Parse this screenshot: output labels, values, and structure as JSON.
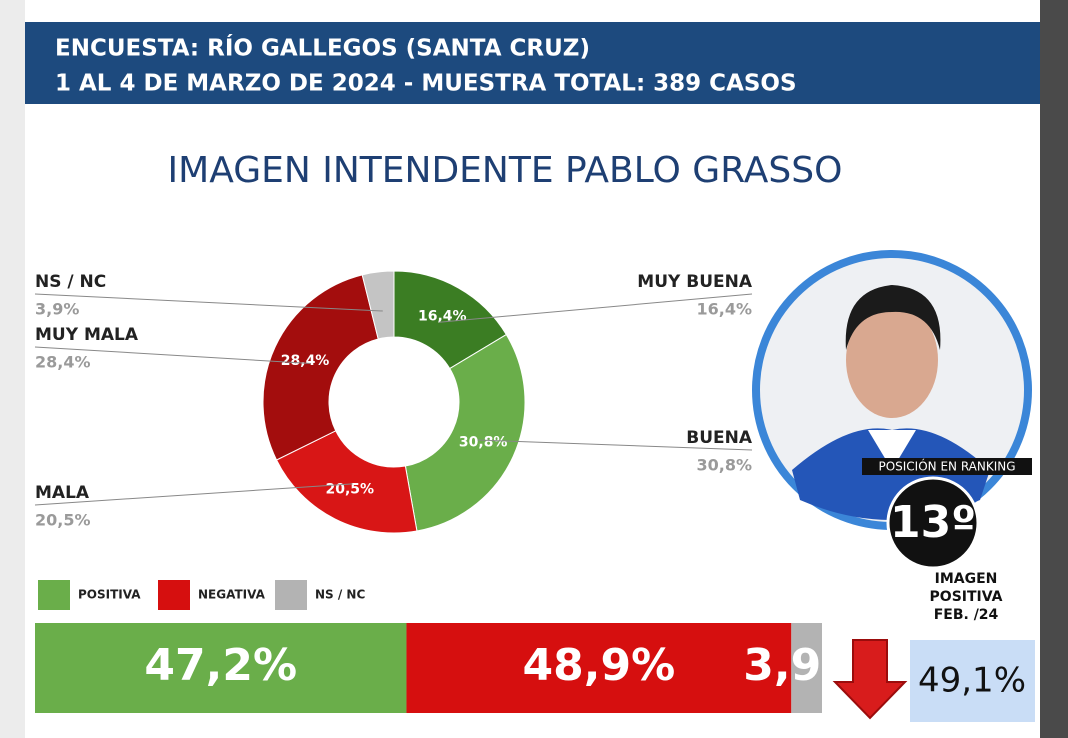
{
  "header": {
    "line1": "ENCUESTA: RÍO GALLEGOS (SANTA CRUZ)",
    "line2": "1 AL 4 DE MARZO DE 2024 - MUESTRA TOTAL: 389 CASOS"
  },
  "chart_data": [
    {
      "type": "donut",
      "title": "IMAGEN INTENDENTE PABLO GRASSO",
      "categories": [
        "MUY BUENA",
        "BUENA",
        "MALA",
        "MUY MALA",
        "NS / NC"
      ],
      "values": [
        16.4,
        30.8,
        20.5,
        28.4,
        3.9
      ],
      "value_labels": [
        "16,4%",
        "30,8%",
        "20,5%",
        "28,4%",
        "3,9%"
      ],
      "colors": [
        "#3b7d23",
        "#6aae4a",
        "#d81616",
        "#a30d0d",
        "#c4c4c4"
      ]
    },
    {
      "type": "stacked-bar",
      "xlim": [
        0,
        100
      ],
      "series": [
        {
          "name": "POSITIVA",
          "color": "#6aae4a",
          "values": [
            47.2
          ],
          "value_labels": [
            "47,2%"
          ]
        },
        {
          "name": "NEGATIVA",
          "color": "#d60f0f",
          "values": [
            48.9
          ],
          "value_labels": [
            "48,9%"
          ]
        },
        {
          "name": "NS / NC",
          "color": "#b3b3b3",
          "values": [
            3.9
          ],
          "value_labels": [
            "3,9"
          ]
        }
      ]
    }
  ],
  "ranking": {
    "label": "POSICIÓN EN RANKING",
    "position": "13º"
  },
  "previous": {
    "label": [
      "IMAGEN",
      "POSITIVA",
      "FEB. /24"
    ],
    "value": "49,1%"
  }
}
